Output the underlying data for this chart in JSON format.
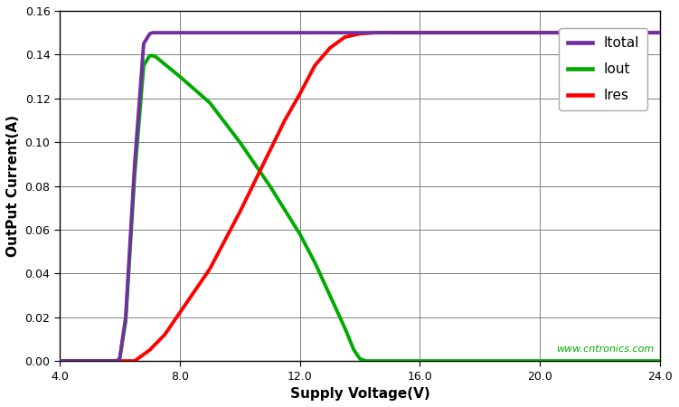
{
  "title": "",
  "xlabel": "Supply Voltage(V)",
  "ylabel": "OutPut Current(A)",
  "watermark": "www.cntronics.com",
  "xlim": [
    4.0,
    24.0
  ],
  "ylim": [
    0,
    0.16
  ],
  "xticks": [
    4.0,
    8.0,
    12.0,
    16.0,
    20.0,
    24.0
  ],
  "yticks": [
    0,
    0.02,
    0.04,
    0.06,
    0.08,
    0.1,
    0.12,
    0.14,
    0.16
  ],
  "Itotal_color": "#7030A0",
  "Iout_color": "#00AA00",
  "Ires_color": "#FF0000",
  "line_width": 2.8,
  "Itotal_x": [
    4.0,
    5.9,
    6.0,
    6.2,
    6.5,
    6.8,
    7.0,
    7.1,
    7.2,
    24.0
  ],
  "Itotal_y": [
    0.0,
    0.0,
    0.001,
    0.02,
    0.09,
    0.145,
    0.1495,
    0.15,
    0.15,
    0.15
  ],
  "Iout_x": [
    4.0,
    5.9,
    6.0,
    6.2,
    6.5,
    6.8,
    7.0,
    7.1,
    7.2,
    8.0,
    9.0,
    10.0,
    11.0,
    12.0,
    12.5,
    13.0,
    13.5,
    13.8,
    14.0,
    14.2,
    14.5,
    24.0
  ],
  "Iout_y": [
    0.0,
    0.0,
    0.001,
    0.018,
    0.085,
    0.135,
    0.1395,
    0.1395,
    0.139,
    0.13,
    0.118,
    0.1,
    0.08,
    0.058,
    0.045,
    0.03,
    0.015,
    0.005,
    0.001,
    0.0,
    0.0,
    0.0
  ],
  "Ires_x": [
    4.0,
    6.5,
    7.0,
    7.5,
    8.0,
    8.5,
    9.0,
    9.5,
    10.0,
    10.5,
    11.0,
    11.5,
    12.0,
    12.5,
    13.0,
    13.5,
    14.0,
    14.5,
    15.0,
    24.0
  ],
  "Ires_y": [
    0.0,
    0.0,
    0.005,
    0.012,
    0.022,
    0.032,
    0.042,
    0.055,
    0.068,
    0.082,
    0.096,
    0.11,
    0.122,
    0.135,
    0.143,
    0.148,
    0.1495,
    0.15,
    0.15,
    0.15
  ],
  "legend_labels": [
    "Itotal",
    "Iout",
    "Ires"
  ],
  "legend_colors": [
    "#7030A0",
    "#00AA00",
    "#FF0000"
  ],
  "background_color": "#ffffff",
  "grid_color": "#808080"
}
